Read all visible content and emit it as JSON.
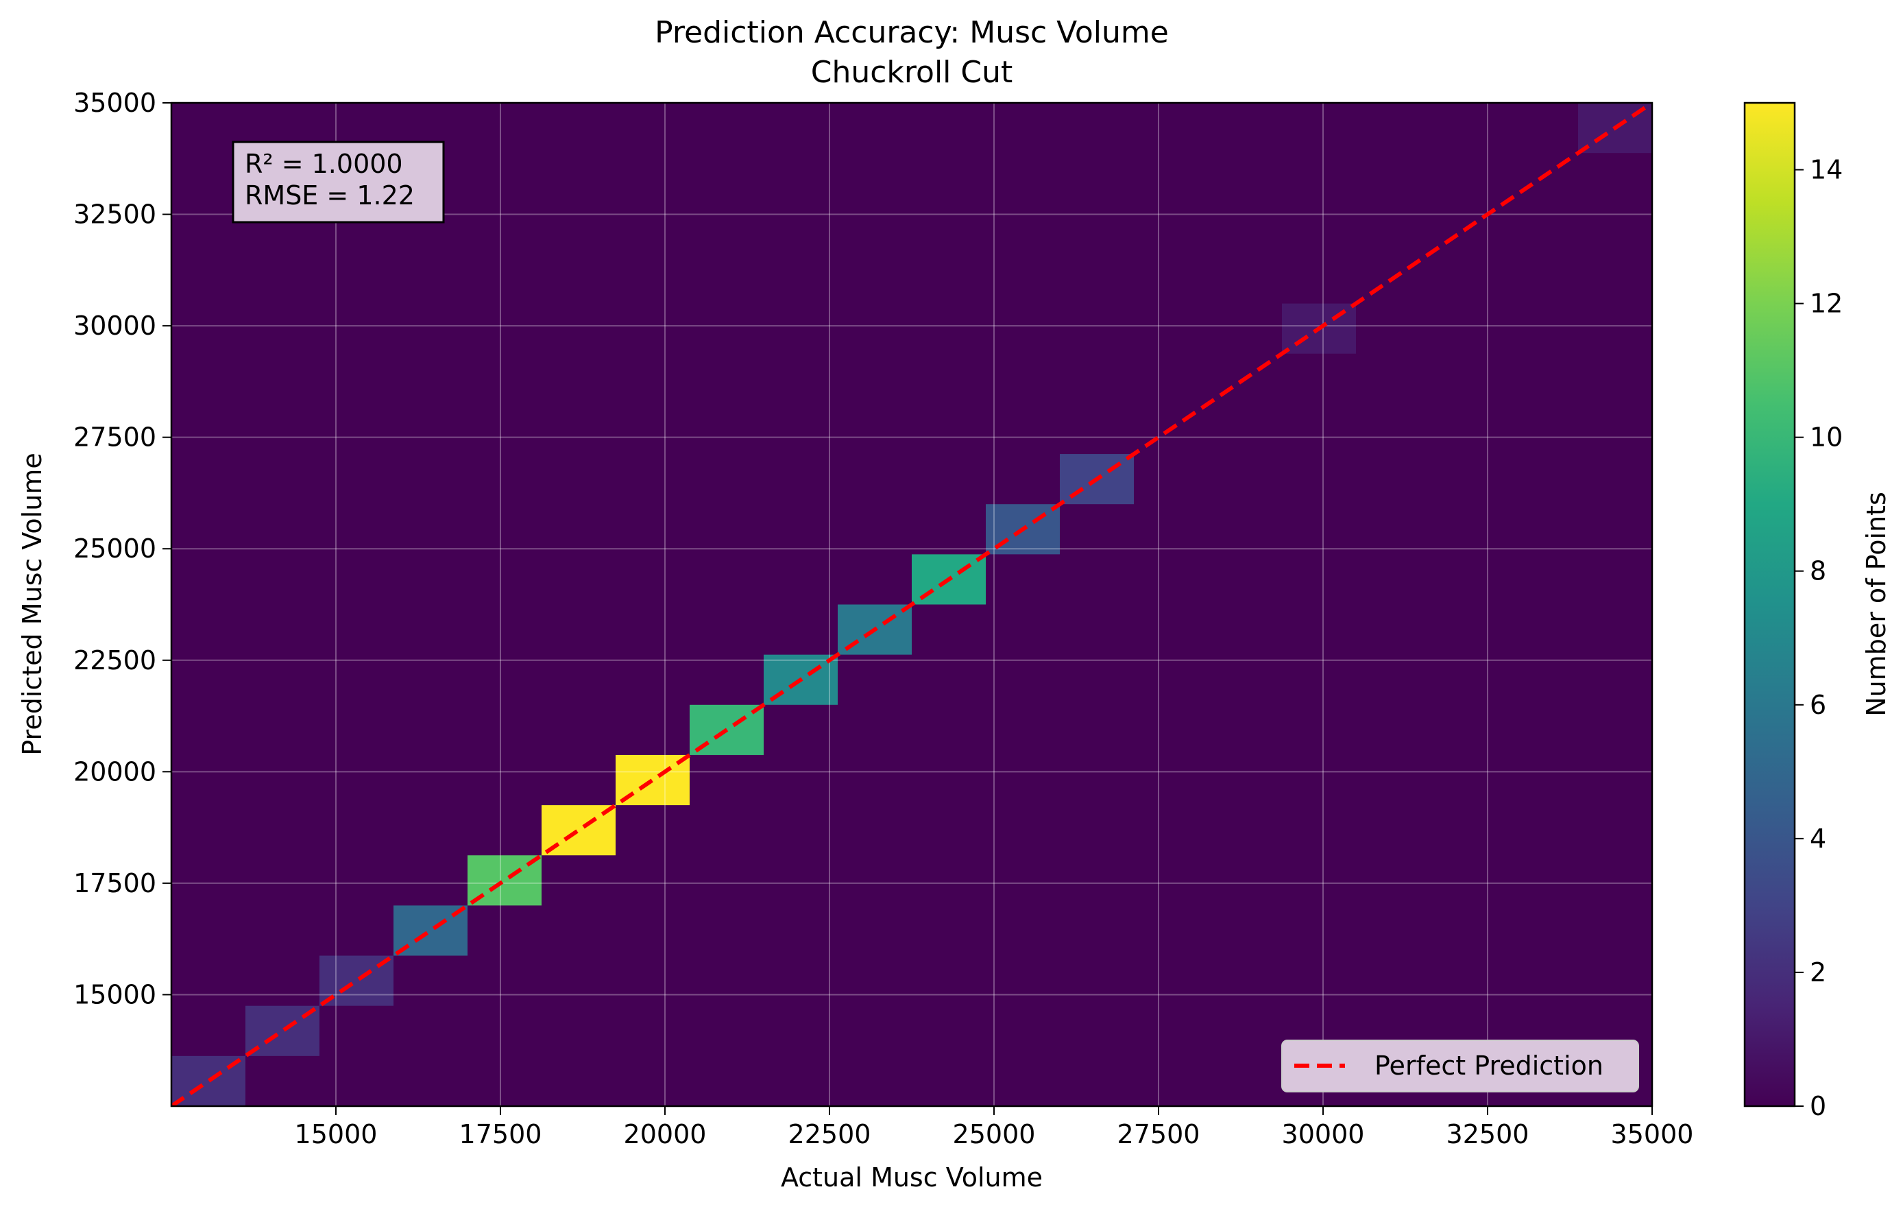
{
  "chart_data": {
    "type": "heatmap",
    "title": "Prediction Accuracy: Musc Volume",
    "subtitle": "Chuckroll Cut",
    "xlabel": "Actual Musc Volume",
    "ylabel": "Predicted Musc Volume",
    "xlim": [
      12500,
      35000
    ],
    "ylim": [
      12500,
      35000
    ],
    "xticks": [
      15000,
      17500,
      20000,
      22500,
      25000,
      27500,
      30000,
      32500,
      35000
    ],
    "yticks": [
      15000,
      17500,
      20000,
      22500,
      25000,
      27500,
      30000,
      32500,
      35000
    ],
    "grid": true,
    "bins": 20,
    "bin_size": 1125,
    "cells": [
      {
        "x": 12500,
        "y": 12500,
        "count": 2
      },
      {
        "x": 13625,
        "y": 13625,
        "count": 2
      },
      {
        "x": 14750,
        "y": 14750,
        "count": 2
      },
      {
        "x": 15875,
        "y": 15875,
        "count": 5
      },
      {
        "x": 17000,
        "y": 17000,
        "count": 11
      },
      {
        "x": 18125,
        "y": 18125,
        "count": 15
      },
      {
        "x": 19250,
        "y": 19250,
        "count": 15
      },
      {
        "x": 20375,
        "y": 20375,
        "count": 10
      },
      {
        "x": 21500,
        "y": 21500,
        "count": 7
      },
      {
        "x": 22625,
        "y": 22625,
        "count": 6
      },
      {
        "x": 23750,
        "y": 23750,
        "count": 9
      },
      {
        "x": 24875,
        "y": 24875,
        "count": 4
      },
      {
        "x": 26000,
        "y": 26000,
        "count": 3
      },
      {
        "x": 29375,
        "y": 29375,
        "count": 1
      },
      {
        "x": 33875,
        "y": 33875,
        "count": 1
      }
    ],
    "reference_line": {
      "label": "Perfect Prediction",
      "from": [
        12500,
        12500
      ],
      "to": [
        35000,
        35000
      ],
      "color": "#ff0000"
    },
    "legend_placement": "lower-right",
    "stats_box": {
      "line1": "R² = 1.0000",
      "line2": "RMSE = 1.22",
      "placement": "upper-left"
    },
    "colorbar": {
      "label": "Number of Points",
      "min": 0,
      "max": 15,
      "ticks": [
        0,
        2,
        4,
        6,
        8,
        10,
        12,
        14
      ],
      "colormap": "viridis"
    }
  }
}
